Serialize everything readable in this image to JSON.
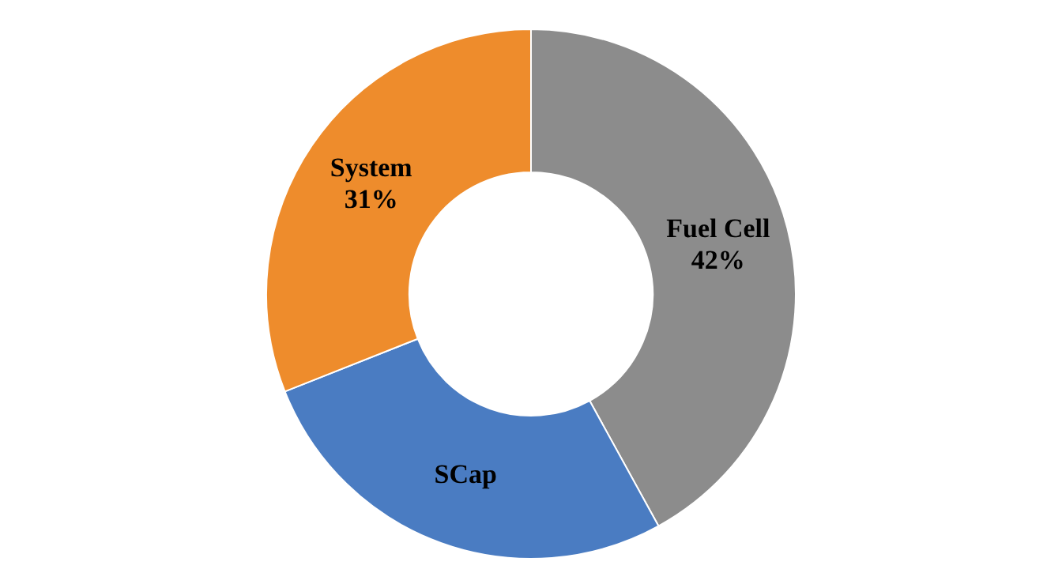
{
  "chart_data": {
    "type": "donut",
    "categories": [
      "Fuel Cell",
      "SCap",
      "System"
    ],
    "values": [
      42,
      27,
      31
    ],
    "colors": [
      "#8c8c8c",
      "#4a7cc2",
      "#ee8c2c"
    ],
    "value_labels": [
      "42%",
      null,
      "31%"
    ],
    "legend": false
  }
}
